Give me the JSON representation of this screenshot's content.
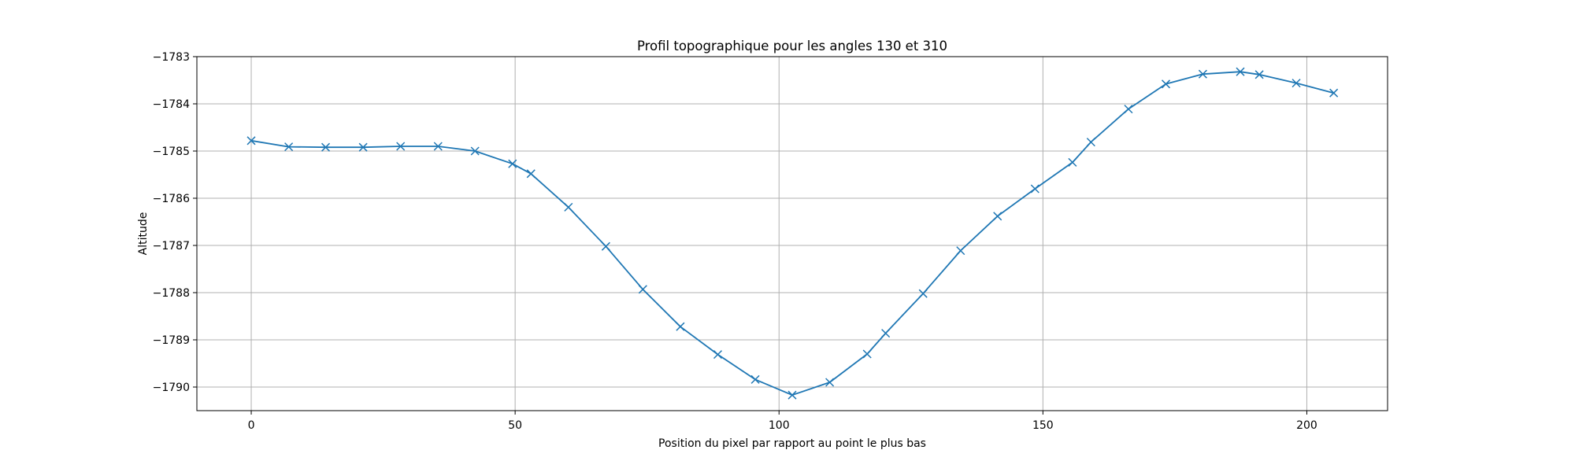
{
  "chart_data": {
    "type": "line",
    "title": "Profil topographique pour les angles 130 et 310",
    "xlabel": "Position du pixel par rapport au point le plus bas",
    "ylabel": "Altitude",
    "xlim": [
      -10.3,
      215.3
    ],
    "ylim": [
      -1790.5,
      -1783.0
    ],
    "xticks": [
      0,
      50,
      100,
      150,
      200
    ],
    "xtick_labels": [
      "0",
      "50",
      "100",
      "150",
      "200"
    ],
    "yticks": [
      -1783,
      -1784,
      -1785,
      -1786,
      -1787,
      -1788,
      -1789,
      -1790
    ],
    "ytick_labels": [
      "−1783",
      "−1784",
      "−1785",
      "−1786",
      "−1787",
      "−1788",
      "−1789",
      "−1790"
    ],
    "grid": true,
    "marker": "x",
    "color": "#1f77b4",
    "series": [
      {
        "x": [
          0,
          7.1,
          14.1,
          21.2,
          28.3,
          35.4,
          42.4,
          49.5,
          53,
          60.1,
          67.2,
          74.2,
          81.3,
          88.4,
          95.5,
          102.5,
          109.6,
          116.7,
          120.2,
          127.3,
          134.4,
          141.4,
          148.5,
          155.6,
          159.1,
          166.2,
          173.3,
          180.3,
          187.4,
          191,
          198,
          205.1
        ],
        "y": [
          -1784.78,
          -1784.91,
          -1784.92,
          -1784.92,
          -1784.9,
          -1784.9,
          -1785.0,
          -1785.27,
          -1785.48,
          -1786.19,
          -1787.02,
          -1787.93,
          -1788.72,
          -1789.31,
          -1789.84,
          -1790.17,
          -1789.9,
          -1789.3,
          -1788.86,
          -1788.02,
          -1787.11,
          -1786.38,
          -1785.8,
          -1785.24,
          -1784.81,
          -1784.11,
          -1783.58,
          -1783.37,
          -1783.32,
          -1783.38,
          -1783.56,
          -1783.77
        ]
      }
    ]
  }
}
